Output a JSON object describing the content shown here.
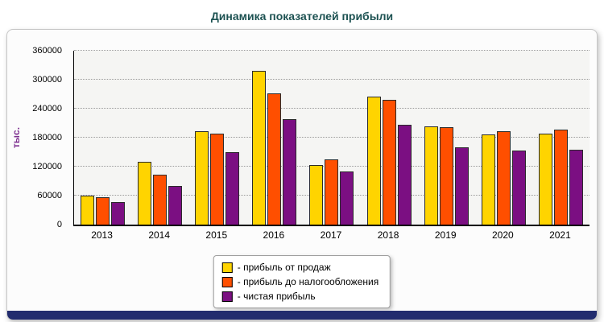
{
  "chart_data": {
    "type": "bar",
    "title": "Динамика показателей прибыли",
    "title_color": "#1d5252",
    "ylabel": "тыс.",
    "ylabel_color": "#7d2f8f",
    "xlabel": "",
    "categories": [
      "2013",
      "2014",
      "2015",
      "2016",
      "2017",
      "2018",
      "2019",
      "2020",
      "2021"
    ],
    "series": [
      {
        "name": "прибыль от продаж",
        "color": "#ffd400",
        "values": [
          60000,
          130000,
          193000,
          318000,
          123000,
          265000,
          203000,
          186000,
          188000
        ]
      },
      {
        "name": "прибыль до налогообложения",
        "color": "#ff4f00",
        "values": [
          57000,
          103000,
          188000,
          271000,
          135000,
          259000,
          202000,
          193000,
          196000
        ]
      },
      {
        "name": "чистая прибыль",
        "color": "#7b0f82",
        "values": [
          46000,
          80000,
          150000,
          218000,
          110000,
          206000,
          160000,
          153000,
          155000
        ]
      }
    ],
    "legend_labels": [
      "- прибыль от продаж",
      "- прибыль до налогообложения",
      "- чистая прибыль"
    ],
    "legend_position": "bottom-center",
    "ylim": [
      0,
      360000
    ],
    "ytick_step": 60000,
    "yticks": [
      "0",
      "60000",
      "120000",
      "180000",
      "240000",
      "300000",
      "360000"
    ],
    "grid": true,
    "footer_bar_color": "#222c6e"
  }
}
